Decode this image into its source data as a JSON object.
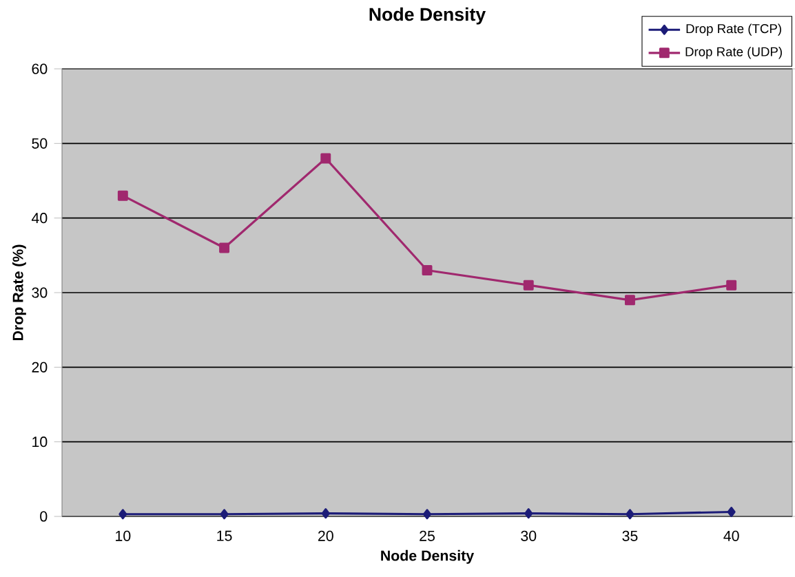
{
  "chart_data": {
    "type": "line",
    "title": "Node Density",
    "xlabel": "Node Density",
    "ylabel": "Drop Rate (%)",
    "categories": [
      "10",
      "15",
      "20",
      "25",
      "30",
      "35",
      "40"
    ],
    "series": [
      {
        "name": "Drop Rate (TCP)",
        "color": "#1c1c78",
        "marker": "diamond",
        "values": [
          0.3,
          0.3,
          0.4,
          0.3,
          0.4,
          0.3,
          0.6
        ]
      },
      {
        "name": "Drop Rate (UDP)",
        "color": "#a0286e",
        "marker": "square",
        "values": [
          43,
          36,
          48,
          33,
          31,
          29,
          31
        ]
      }
    ],
    "ylim": [
      0,
      60
    ],
    "yticks": [
      0,
      10,
      20,
      30,
      40,
      50,
      60
    ],
    "grid": "y",
    "legend": "top right",
    "line_style": "solid"
  }
}
